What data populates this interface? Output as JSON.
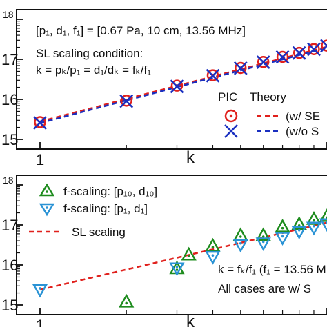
{
  "chart_data": [
    {
      "type": "scatter",
      "x_scale": "log",
      "y_scale": "log",
      "xlim": [
        1,
        12
      ],
      "ylim": [
        1000000000000000.0,
        1e+18
      ],
      "y_tick_labels": [
        {
          "value": 1000000000000000.0,
          "mantissa": "15",
          "sup": ""
        },
        {
          "value": 1e+16,
          "mantissa": "16",
          "sup": ""
        },
        {
          "value": 1e+17,
          "mantissa": "17",
          "sup": ""
        },
        {
          "value": 1e+18,
          "mantissa": "",
          "sup": "18"
        }
      ],
      "x_tick_labels": [
        {
          "value": 1,
          "text": "1"
        }
      ],
      "xlabel": "k",
      "annotations": {
        "params": "[p₁, d₁, f₁] = [0.67 Pa, 10 cm, 13.56 MHz]",
        "cond_title": "SL scaling condition:",
        "cond_eq": "k = pₖ/p₁ = d₁/dₖ = fₖ/f₁"
      },
      "legend": {
        "placement": "lower-right",
        "header_pic": "PIC",
        "header_theory": "Theory",
        "entry1": "(w/ SE",
        "entry2": "(w/o S"
      },
      "series": [
        {
          "name": "PIC w/ SE",
          "marker": "circle-dot",
          "color": "#e0201c",
          "x": [
            1,
            2,
            3,
            4,
            5,
            6,
            7,
            8,
            9,
            10
          ],
          "y": [
            2700000000000000.0,
            9300000000000000.0,
            2.2e+16,
            4e+16,
            6.1e+16,
            8.6e+16,
            1.15e+17,
            1.45e+17,
            1.8e+17,
            2.2e+17
          ]
        },
        {
          "name": "PIC w/o SE",
          "marker": "x",
          "color": "#1a2fc0",
          "x": [
            1,
            2,
            3,
            4,
            5,
            6,
            7,
            8,
            9,
            10
          ],
          "y": [
            2600000000000000.0,
            9000000000000000.0,
            2.1e+16,
            3.9e+16,
            6e+16,
            8.5e+16,
            1.14e+17,
            1.44e+17,
            1.78e+17,
            2.18e+17
          ]
        },
        {
          "name": "Theory w/ SE",
          "line": "dashed",
          "color": "#e0201c",
          "x": [
            1,
            12
          ],
          "y": [
            2800000000000000.0,
            2.9e+17
          ]
        },
        {
          "name": "Theory w/o SE",
          "line": "dashed",
          "color": "#1a2fc0",
          "x": [
            1,
            12
          ],
          "y": [
            2550000000000000.0,
            2.75e+17
          ]
        }
      ]
    },
    {
      "type": "scatter",
      "x_scale": "log",
      "y_scale": "log",
      "xlim": [
        1,
        12
      ],
      "ylim": [
        1000000000000000.0,
        1e+18
      ],
      "y_tick_labels": [
        {
          "value": 1000000000000000.0,
          "mantissa": "15",
          "sup": ""
        },
        {
          "value": 1e+16,
          "mantissa": "16",
          "sup": ""
        },
        {
          "value": 1e+17,
          "mantissa": "17",
          "sup": ""
        },
        {
          "value": 1e+18,
          "mantissa": "",
          "sup": "18"
        }
      ],
      "x_tick_labels": [
        {
          "value": 1,
          "text": "1"
        }
      ],
      "xlabel": "k",
      "annotations": {
        "scale_eq": "k = fₖ/f₁ (f₁ = 13.56 M",
        "cases": "All cases are w/ S"
      },
      "legend": {
        "placement": "upper-left",
        "entry1": "f-scaling: [p₁₀, d₁₀]",
        "entry2": "f-scaling: [p₁, d₁]",
        "entry3": "SL scaling"
      },
      "series": [
        {
          "name": "f-scaling: [p10, d10]",
          "marker": "triangle-up",
          "color": "#1e8c1e",
          "x": [
            2,
            3,
            3.3,
            4,
            5,
            6,
            7,
            8,
            9,
            10,
            11
          ],
          "y": [
            1200000000000000.0,
            8200000000000000.0,
            1.8e+16,
            3e+16,
            5.5e+16,
            5.5e+16,
            9e+16,
            1.05e+17,
            1.4e+17,
            1.65e+17,
            1.75e+17
          ]
        },
        {
          "name": "f-scaling: [p1, d1]",
          "marker": "triangle-down",
          "color": "#2a93d5",
          "x": [
            1,
            3,
            4,
            5,
            6,
            7,
            8,
            9,
            10,
            11,
            12
          ],
          "y": [
            2400000000000000.0,
            8300000000000000.0,
            1.6e+16,
            3.2e+16,
            3.5e+16,
            4.8e+16,
            6.8e+16,
            8.6e+16,
            1.05e+17,
            1.3e+17,
            1.55e+17
          ]
        },
        {
          "name": "SL scaling",
          "line": "dashed",
          "color": "#e0201c",
          "x": [
            1,
            12
          ],
          "y": [
            2400000000000000.0,
            1.55e+17
          ]
        }
      ]
    }
  ]
}
